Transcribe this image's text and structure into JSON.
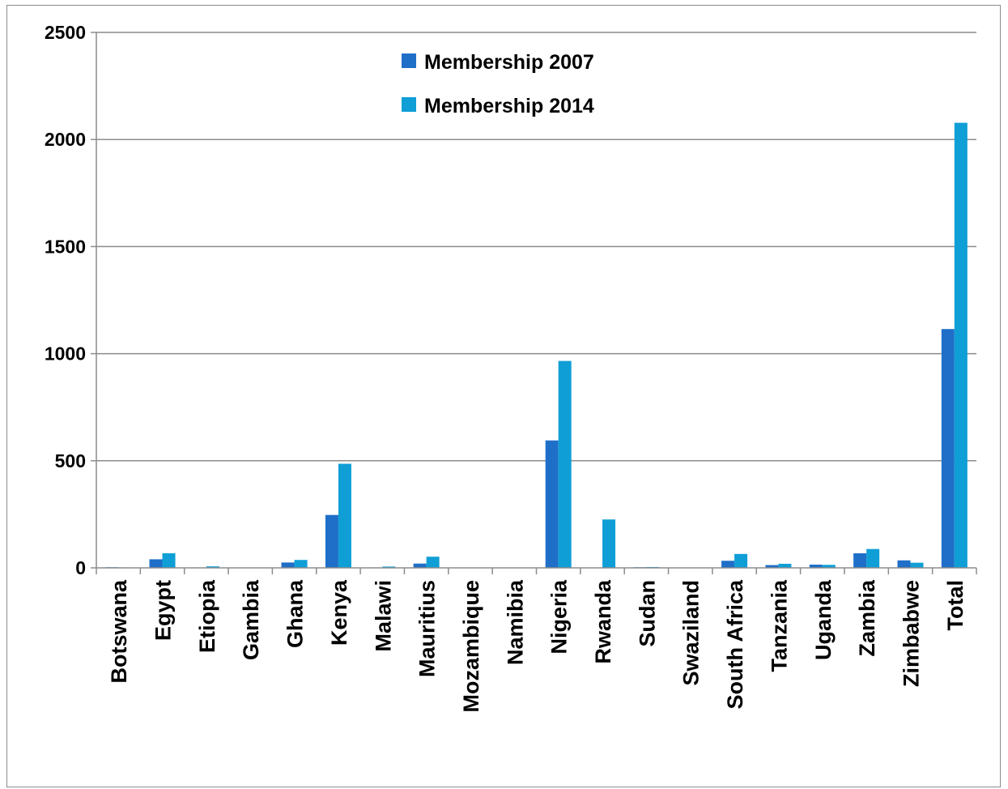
{
  "chart_data": {
    "type": "bar",
    "categories": [
      "Botswana",
      "Egypt",
      "Etiopia",
      "Gambia",
      "Ghana",
      "Kenya",
      "Malawi",
      "Mauritius",
      "Mozambique",
      "Namibia",
      "Nigeria",
      "Rwanda",
      "Sudan",
      "Swaziland",
      "South Africa",
      "Tanzania",
      "Uganda",
      "Zambia",
      "Zimbabwe",
      "Total"
    ],
    "series": [
      {
        "name": "Membership 2007",
        "color": "#1f6fc8",
        "values": [
          3,
          40,
          2,
          0,
          25,
          247,
          2,
          20,
          0,
          0,
          595,
          0,
          3,
          0,
          33,
          13,
          15,
          68,
          35,
          1115
        ]
      },
      {
        "name": "Membership 2014",
        "color": "#0f9fd6",
        "values": [
          2,
          68,
          7,
          0,
          37,
          486,
          6,
          52,
          0,
          0,
          966,
          226,
          4,
          0,
          65,
          19,
          14,
          88,
          24,
          2078
        ]
      }
    ],
    "ylim": [
      0,
      2500
    ],
    "yticks": [
      "0",
      "500",
      "1000",
      "1500",
      "2000",
      "2500"
    ],
    "grid": true,
    "legend_position": "top-center",
    "title": "",
    "xlabel": "",
    "ylabel": ""
  }
}
